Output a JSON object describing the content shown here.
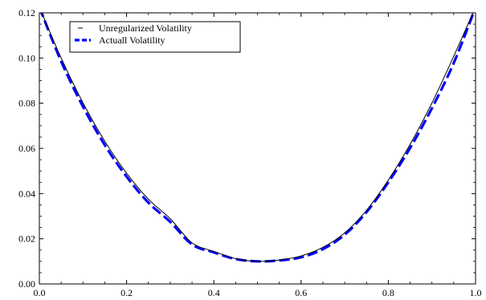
{
  "chart_data": {
    "type": "line",
    "title": "",
    "xlabel": "",
    "ylabel": "",
    "xlim": [
      0,
      1
    ],
    "ylim": [
      0,
      0.12
    ],
    "xticks": [
      "0.0",
      "0.2",
      "0.4",
      "0.6",
      "0.8",
      "1.0"
    ],
    "yticks": [
      "0.00",
      "0.02",
      "0.04",
      "0.06",
      "0.08",
      "0.10",
      "0.12"
    ],
    "grid": false,
    "legend_position": "top-left",
    "series": [
      {
        "name": "Unregularized Volatility",
        "style": "solid",
        "color": "#000000",
        "x": [
          0.0,
          0.05,
          0.1,
          0.15,
          0.2,
          0.25,
          0.3,
          0.35,
          0.4,
          0.45,
          0.5,
          0.55,
          0.6,
          0.65,
          0.7,
          0.75,
          0.8,
          0.85,
          0.9,
          0.95,
          1.0
        ],
        "y": [
          0.1225,
          0.1,
          0.0802,
          0.0632,
          0.049,
          0.0375,
          0.0289,
          0.0182,
          0.0144,
          0.0112,
          0.01,
          0.0106,
          0.0124,
          0.0162,
          0.0226,
          0.0326,
          0.046,
          0.0618,
          0.0801,
          0.1008,
          0.1226
        ]
      },
      {
        "name": "Actuall Volatility",
        "style": "dashed",
        "color": "#0000ff",
        "x": [
          0.0,
          0.05,
          0.1,
          0.15,
          0.2,
          0.25,
          0.3,
          0.35,
          0.4,
          0.45,
          0.5,
          0.55,
          0.6,
          0.65,
          0.7,
          0.75,
          0.8,
          0.85,
          0.9,
          0.95,
          1.0
        ],
        "y": [
          0.1225,
          0.0985,
          0.0785,
          0.0615,
          0.0475,
          0.036,
          0.0275,
          0.0175,
          0.014,
          0.011,
          0.01,
          0.0104,
          0.0118,
          0.0154,
          0.0218,
          0.0318,
          0.045,
          0.0602,
          0.0778,
          0.0978,
          0.1224
        ]
      }
    ]
  }
}
